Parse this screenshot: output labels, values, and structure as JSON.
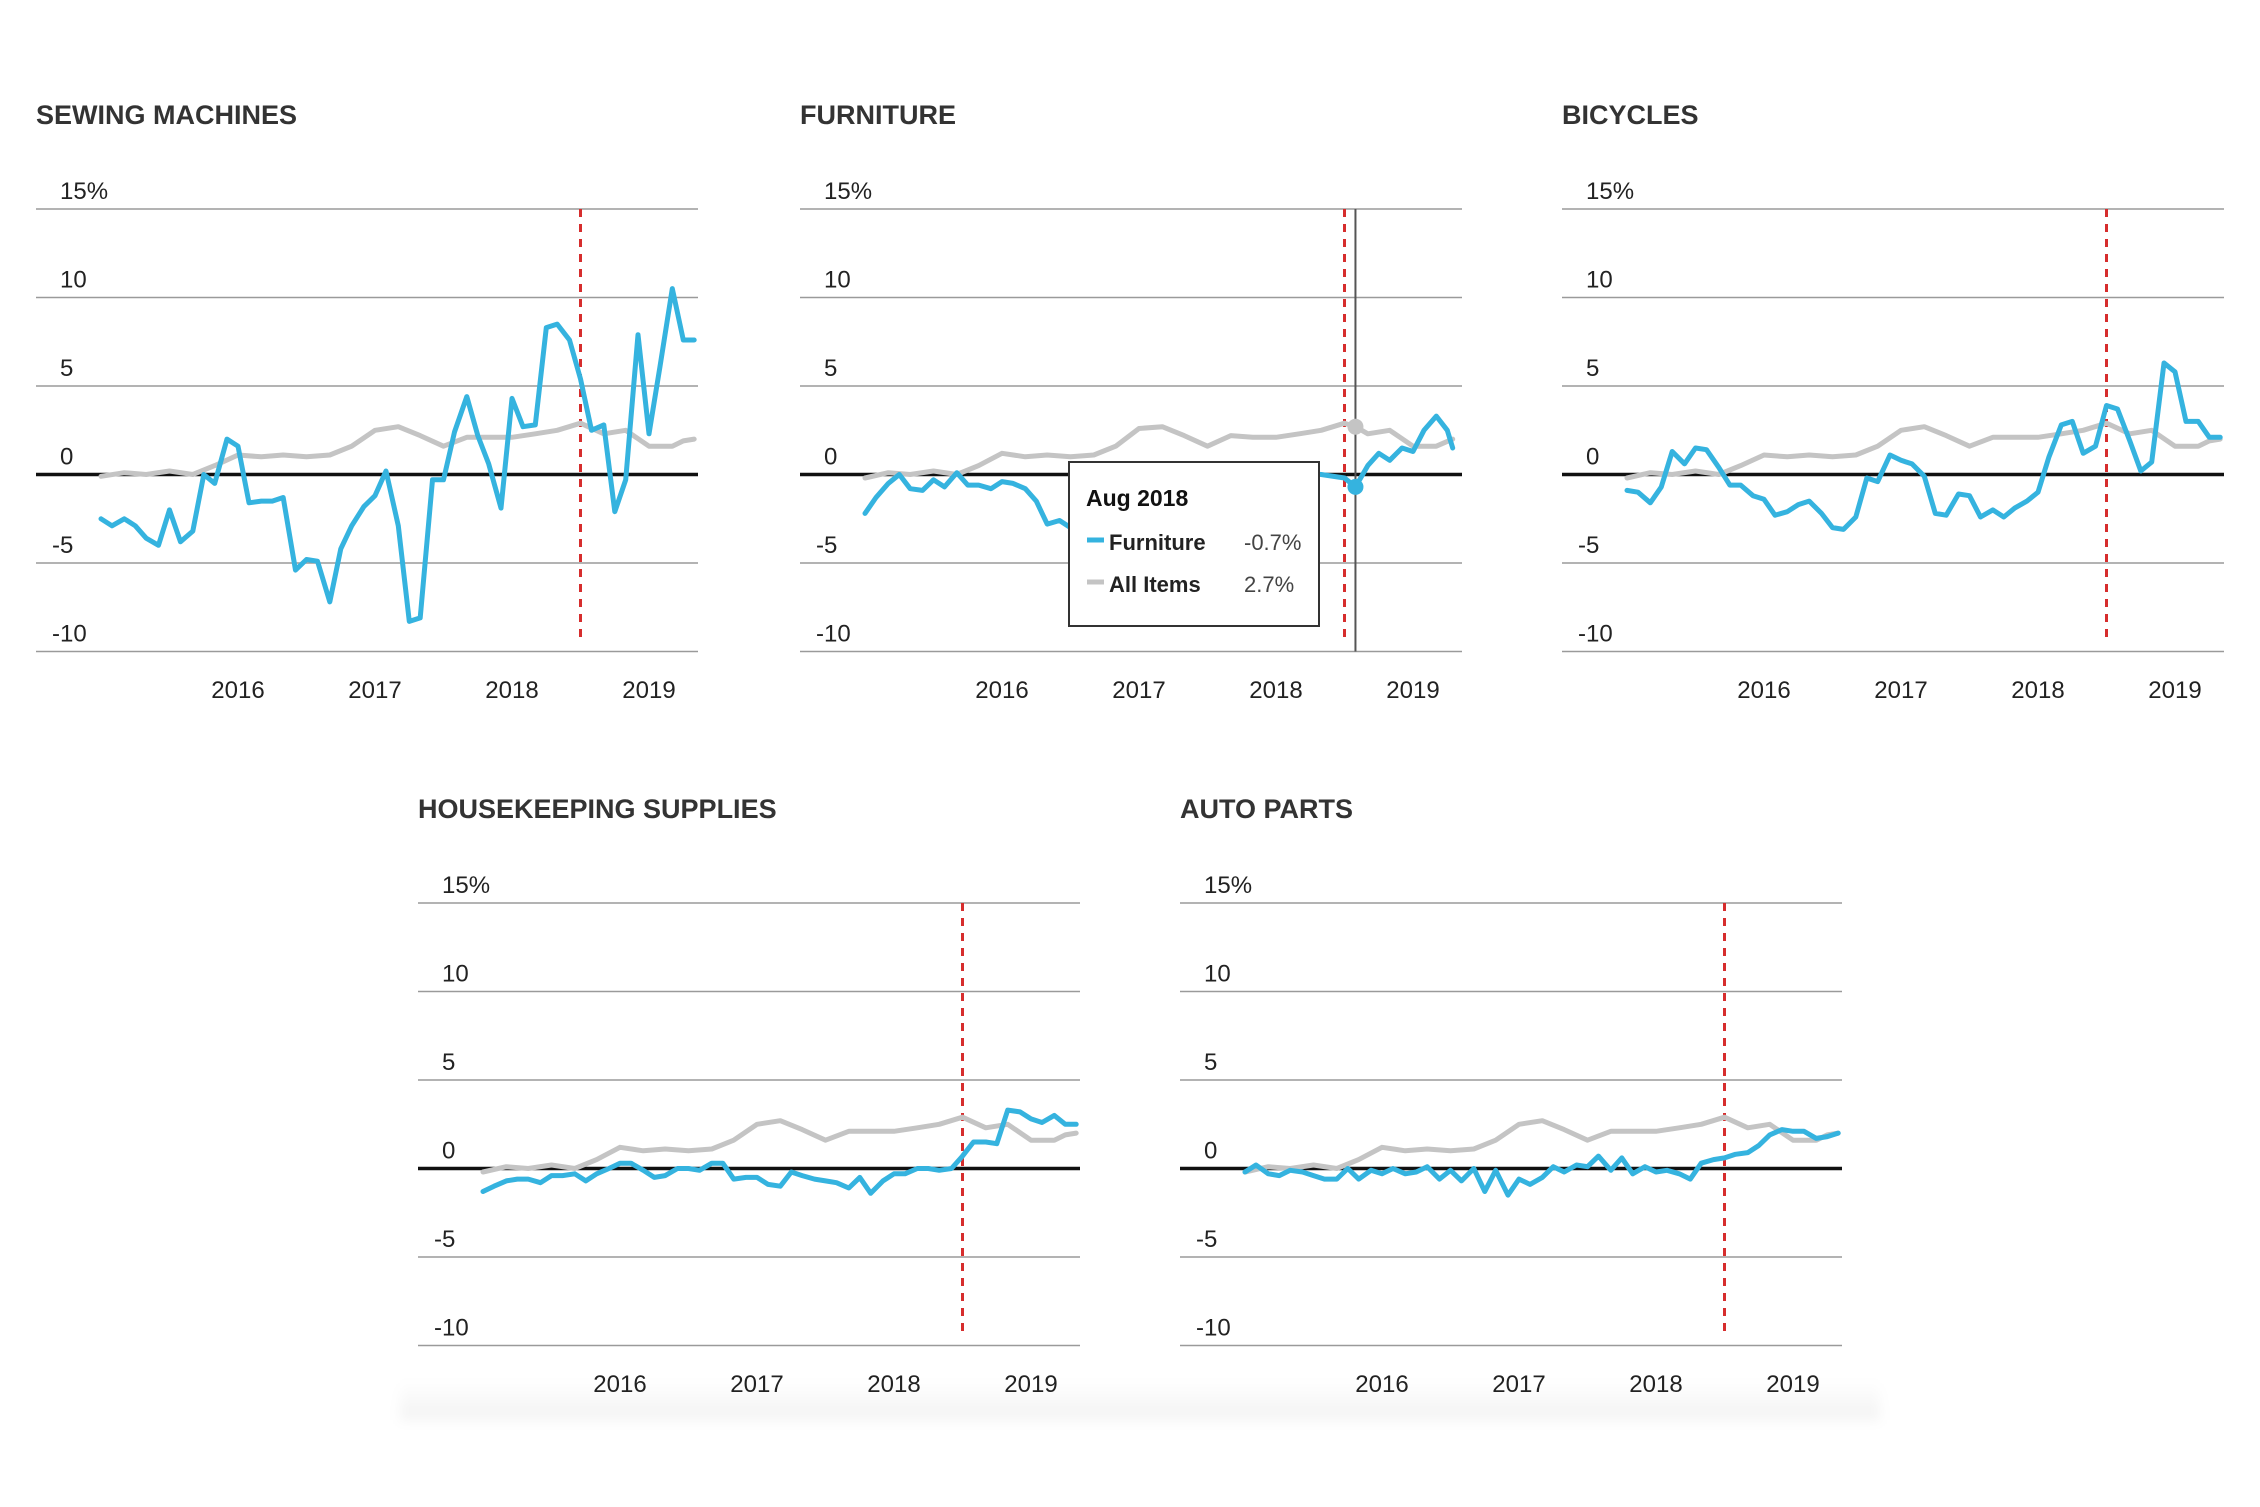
{
  "colors": {
    "category": "#35b3df",
    "all_items": "#c4c4c4",
    "tariff_line": "#d62d2d",
    "zero_line": "#111111",
    "grid": "#9a9a9a"
  },
  "chart_data": [
    {
      "type": "line",
      "title": "SEWING MACHINES",
      "x_ticks": [
        "2016",
        "2017",
        "2018",
        "2019"
      ],
      "y_ticks": [
        "15%",
        "10",
        "5",
        "0",
        "-5",
        "-10"
      ],
      "ylim": [
        -10,
        15
      ],
      "xlim": [
        2014.8,
        2019.5
      ],
      "marker_x": 2018.5,
      "series": [
        {
          "color": "#35b3df",
          "x": [
            2015.0,
            2015.08,
            2015.17,
            2015.25,
            2015.33,
            2015.42,
            2015.5,
            2015.58,
            2015.67,
            2015.75,
            2015.83,
            2015.92,
            2016.0,
            2016.08,
            2016.17,
            2016.25,
            2016.33,
            2016.42,
            2016.5,
            2016.58,
            2016.67,
            2016.75,
            2016.83,
            2016.92,
            2017.0,
            2017.08,
            2017.17,
            2017.25,
            2017.33,
            2017.42,
            2017.5,
            2017.58,
            2017.67,
            2017.75,
            2017.83,
            2017.92,
            2018.0,
            2018.08,
            2018.17,
            2018.25,
            2018.33,
            2018.42,
            2018.5,
            2018.58,
            2018.67,
            2018.75,
            2018.83,
            2018.92,
            2019.0,
            2019.08,
            2019.17,
            2019.25,
            2019.33
          ],
          "y": [
            -2.5,
            -2.9,
            -2.5,
            -2.9,
            -3.6,
            -4.0,
            -2.0,
            -3.8,
            -3.2,
            0.0,
            -0.5,
            2.0,
            1.6,
            -1.6,
            -1.5,
            -1.5,
            -1.3,
            -5.4,
            -4.8,
            -4.9,
            -7.2,
            -4.2,
            -2.9,
            -1.8,
            -1.2,
            0.2,
            -2.9,
            -8.3,
            -8.1,
            -0.3,
            -0.3,
            2.4,
            4.4,
            2.2,
            0.6,
            -1.9,
            4.3,
            2.7,
            2.8,
            8.3,
            8.5,
            7.6,
            5.4,
            2.5,
            2.8,
            -2.1,
            -0.3,
            7.9,
            2.3,
            6.1,
            10.5,
            7.6,
            7.6
          ]
        },
        {
          "color": "#c4c4c4",
          "x": [
            2015.0,
            2015.17,
            2015.33,
            2015.5,
            2015.67,
            2015.83,
            2016.0,
            2016.17,
            2016.33,
            2016.5,
            2016.67,
            2016.83,
            2017.0,
            2017.17,
            2017.33,
            2017.5,
            2017.67,
            2017.83,
            2018.0,
            2018.17,
            2018.33,
            2018.5,
            2018.67,
            2018.83,
            2019.0,
            2019.17,
            2019.25,
            2019.33
          ],
          "y": [
            -0.1,
            0.1,
            0.0,
            0.2,
            0.0,
            0.5,
            1.1,
            1.0,
            1.1,
            1.0,
            1.1,
            1.6,
            2.5,
            2.7,
            2.2,
            1.6,
            2.1,
            2.1,
            2.1,
            2.3,
            2.5,
            2.9,
            2.3,
            2.5,
            1.6,
            1.6,
            1.9,
            2.0
          ]
        }
      ]
    },
    {
      "type": "line",
      "title": "FURNITURE",
      "x_ticks": [
        "2016",
        "2017",
        "2018",
        "2019"
      ],
      "y_ticks": [
        "15%",
        "10",
        "5",
        "0",
        "-5",
        "-10"
      ],
      "ylim": [
        -10,
        15
      ],
      "xlim": [
        2014.8,
        2019.5
      ],
      "marker_x": 2018.5,
      "tooltip": {
        "title": "Aug 2018",
        "x": 2018.58,
        "rows": [
          {
            "label": "Furniture",
            "value": "-0.7%",
            "color": "#35b3df",
            "y": -0.7
          },
          {
            "label": "All Items",
            "value": "2.7%",
            "color": "#c4c4c4",
            "y": 2.7
          }
        ]
      },
      "series": [
        {
          "color": "#35b3df",
          "x": [
            2015.0,
            2015.08,
            2015.17,
            2015.25,
            2015.33,
            2015.42,
            2015.5,
            2015.58,
            2015.67,
            2015.75,
            2015.83,
            2015.92,
            2016.0,
            2016.08,
            2016.17,
            2016.25,
            2016.33,
            2016.42,
            2016.5,
            2016.58,
            2016.67,
            2016.75,
            2016.83,
            2016.92,
            2017.0,
            2017.17,
            2017.33,
            2017.5,
            2017.67,
            2017.83,
            2018.0,
            2018.17,
            2018.33,
            2018.5,
            2018.58,
            2018.67,
            2018.75,
            2018.83,
            2018.92,
            2019.0,
            2019.08,
            2019.17,
            2019.25,
            2019.29
          ],
          "y": [
            -2.2,
            -1.3,
            -0.5,
            0.0,
            -0.8,
            -0.9,
            -0.3,
            -0.7,
            0.1,
            -0.6,
            -0.6,
            -0.8,
            -0.4,
            -0.5,
            -0.8,
            -1.5,
            -2.8,
            -2.6,
            -3.0,
            -2.0,
            -1.5,
            -1.3,
            -1.0,
            -0.8,
            -0.5,
            -0.3,
            -0.2,
            0.0,
            0.4,
            0.2,
            0.3,
            0.1,
            0.0,
            -0.2,
            -0.7,
            0.5,
            1.2,
            0.8,
            1.5,
            1.3,
            2.5,
            3.3,
            2.5,
            1.5
          ]
        },
        {
          "color": "#c4c4c4",
          "x": [
            2015.0,
            2015.17,
            2015.33,
            2015.5,
            2015.67,
            2015.83,
            2016.0,
            2016.17,
            2016.33,
            2016.5,
            2016.67,
            2016.83,
            2017.0,
            2017.17,
            2017.33,
            2017.5,
            2017.67,
            2017.83,
            2018.0,
            2018.17,
            2018.33,
            2018.5,
            2018.58,
            2018.67,
            2018.83,
            2019.0,
            2019.17,
            2019.29
          ],
          "y": [
            -0.2,
            0.1,
            0.0,
            0.2,
            0.0,
            0.5,
            1.2,
            1.0,
            1.1,
            1.0,
            1.1,
            1.6,
            2.6,
            2.7,
            2.2,
            1.6,
            2.2,
            2.1,
            2.1,
            2.3,
            2.5,
            2.9,
            2.7,
            2.3,
            2.5,
            1.6,
            1.6,
            2.0
          ]
        }
      ]
    },
    {
      "type": "line",
      "title": "BICYCLES",
      "x_ticks": [
        "2016",
        "2017",
        "2018",
        "2019"
      ],
      "y_ticks": [
        "15%",
        "10",
        "5",
        "0",
        "-5",
        "-10"
      ],
      "ylim": [
        -10,
        15
      ],
      "xlim": [
        2014.8,
        2019.5
      ],
      "marker_x": 2018.5,
      "series": [
        {
          "color": "#35b3df",
          "x": [
            2015.0,
            2015.08,
            2015.17,
            2015.25,
            2015.33,
            2015.42,
            2015.5,
            2015.58,
            2015.67,
            2015.75,
            2015.83,
            2015.92,
            2016.0,
            2016.08,
            2016.17,
            2016.25,
            2016.33,
            2016.42,
            2016.5,
            2016.58,
            2016.67,
            2016.75,
            2016.83,
            2016.92,
            2017.0,
            2017.08,
            2017.17,
            2017.25,
            2017.33,
            2017.42,
            2017.5,
            2017.58,
            2017.67,
            2017.75,
            2017.83,
            2017.92,
            2018.0,
            2018.08,
            2018.17,
            2018.25,
            2018.33,
            2018.42,
            2018.5,
            2018.58,
            2018.67,
            2018.75,
            2018.83,
            2018.92,
            2019.0,
            2019.08,
            2019.17,
            2019.25,
            2019.33
          ],
          "y": [
            -0.9,
            -1.0,
            -1.6,
            -0.7,
            1.3,
            0.6,
            1.5,
            1.4,
            0.4,
            -0.6,
            -0.6,
            -1.2,
            -1.4,
            -2.3,
            -2.1,
            -1.7,
            -1.5,
            -2.2,
            -3.0,
            -3.1,
            -2.4,
            -0.2,
            -0.4,
            1.1,
            0.8,
            0.6,
            -0.1,
            -2.2,
            -2.3,
            -1.1,
            -1.2,
            -2.4,
            -2.0,
            -2.4,
            -1.9,
            -1.5,
            -1.0,
            1.0,
            2.8,
            3.0,
            1.2,
            1.6,
            3.9,
            3.7,
            1.9,
            0.2,
            0.7,
            6.3,
            5.8,
            3.0,
            3.0,
            2.1,
            2.1
          ]
        },
        {
          "color": "#c4c4c4",
          "x": [
            2015.0,
            2015.17,
            2015.33,
            2015.5,
            2015.67,
            2015.83,
            2016.0,
            2016.17,
            2016.33,
            2016.5,
            2016.67,
            2016.83,
            2017.0,
            2017.17,
            2017.33,
            2017.5,
            2017.67,
            2017.83,
            2018.0,
            2018.17,
            2018.33,
            2018.5,
            2018.67,
            2018.83,
            2019.0,
            2019.17,
            2019.25,
            2019.33
          ],
          "y": [
            -0.2,
            0.1,
            0.0,
            0.2,
            0.0,
            0.5,
            1.1,
            1.0,
            1.1,
            1.0,
            1.1,
            1.6,
            2.5,
            2.7,
            2.2,
            1.6,
            2.1,
            2.1,
            2.1,
            2.3,
            2.5,
            2.9,
            2.3,
            2.5,
            1.6,
            1.6,
            1.9,
            2.0
          ]
        }
      ]
    },
    {
      "type": "line",
      "title": "HOUSEKEEPING SUPPLIES",
      "x_ticks": [
        "2016",
        "2017",
        "2018",
        "2019"
      ],
      "y_ticks": [
        "15%",
        "10",
        "5",
        "0",
        "-5",
        "-10"
      ],
      "ylim": [
        -10,
        15
      ],
      "xlim": [
        2014.8,
        2019.5
      ],
      "marker_x": 2018.5,
      "series": [
        {
          "color": "#35b3df",
          "x": [
            2015.0,
            2015.08,
            2015.17,
            2015.25,
            2015.33,
            2015.42,
            2015.5,
            2015.58,
            2015.67,
            2015.75,
            2015.83,
            2015.92,
            2016.0,
            2016.08,
            2016.17,
            2016.25,
            2016.33,
            2016.42,
            2016.5,
            2016.58,
            2016.67,
            2016.75,
            2016.83,
            2016.92,
            2017.0,
            2017.08,
            2017.17,
            2017.25,
            2017.33,
            2017.42,
            2017.5,
            2017.58,
            2017.67,
            2017.75,
            2017.83,
            2017.92,
            2018.0,
            2018.08,
            2018.17,
            2018.25,
            2018.33,
            2018.42,
            2018.5,
            2018.58,
            2018.67,
            2018.75,
            2018.83,
            2018.92,
            2019.0,
            2019.08,
            2019.17,
            2019.25,
            2019.33
          ],
          "y": [
            -1.3,
            -1.0,
            -0.7,
            -0.6,
            -0.6,
            -0.8,
            -0.4,
            -0.4,
            -0.3,
            -0.7,
            -0.3,
            0.0,
            0.3,
            0.3,
            -0.1,
            -0.5,
            -0.4,
            0.0,
            0.0,
            -0.1,
            0.3,
            0.3,
            -0.6,
            -0.5,
            -0.5,
            -0.9,
            -1.0,
            -0.2,
            -0.4,
            -0.6,
            -0.7,
            -0.8,
            -1.1,
            -0.5,
            -1.4,
            -0.7,
            -0.3,
            -0.3,
            0.0,
            0.0,
            -0.1,
            0.0,
            0.7,
            1.5,
            1.5,
            1.4,
            3.3,
            3.2,
            2.8,
            2.6,
            3.0,
            2.5,
            2.5
          ]
        },
        {
          "color": "#c4c4c4",
          "x": [
            2015.0,
            2015.17,
            2015.33,
            2015.5,
            2015.67,
            2015.83,
            2016.0,
            2016.17,
            2016.33,
            2016.5,
            2016.67,
            2016.83,
            2017.0,
            2017.17,
            2017.33,
            2017.5,
            2017.67,
            2017.83,
            2018.0,
            2018.17,
            2018.33,
            2018.5,
            2018.67,
            2018.83,
            2019.0,
            2019.17,
            2019.25,
            2019.33
          ],
          "y": [
            -0.2,
            0.1,
            0.0,
            0.2,
            0.0,
            0.5,
            1.2,
            1.0,
            1.1,
            1.0,
            1.1,
            1.6,
            2.5,
            2.7,
            2.2,
            1.6,
            2.1,
            2.1,
            2.1,
            2.3,
            2.5,
            2.9,
            2.3,
            2.5,
            1.6,
            1.6,
            1.9,
            2.0
          ]
        }
      ]
    },
    {
      "type": "line",
      "title": "AUTO PARTS",
      "x_ticks": [
        "2016",
        "2017",
        "2018",
        "2019"
      ],
      "y_ticks": [
        "15%",
        "10",
        "5",
        "0",
        "-5",
        "-10"
      ],
      "ylim": [
        -10,
        15
      ],
      "xlim": [
        2014.8,
        2019.5
      ],
      "marker_x": 2018.5,
      "series": [
        {
          "color": "#35b3df",
          "x": [
            2015.0,
            2015.08,
            2015.17,
            2015.25,
            2015.33,
            2015.42,
            2015.5,
            2015.58,
            2015.67,
            2015.75,
            2015.83,
            2015.92,
            2016.0,
            2016.08,
            2016.17,
            2016.25,
            2016.33,
            2016.42,
            2016.5,
            2016.58,
            2016.67,
            2016.75,
            2016.83,
            2016.92,
            2017.0,
            2017.08,
            2017.17,
            2017.25,
            2017.33,
            2017.42,
            2017.5,
            2017.58,
            2017.67,
            2017.75,
            2017.83,
            2017.92,
            2018.0,
            2018.08,
            2018.17,
            2018.25,
            2018.33,
            2018.42,
            2018.5,
            2018.58,
            2018.67,
            2018.75,
            2018.83,
            2018.92,
            2019.0,
            2019.08,
            2019.17,
            2019.25,
            2019.33
          ],
          "y": [
            -0.2,
            0.2,
            -0.3,
            -0.4,
            -0.1,
            -0.2,
            -0.4,
            -0.6,
            -0.6,
            0.0,
            -0.6,
            -0.1,
            -0.3,
            0.0,
            -0.3,
            -0.2,
            0.1,
            -0.6,
            -0.1,
            -0.7,
            0.0,
            -1.3,
            -0.1,
            -1.5,
            -0.6,
            -0.9,
            -0.5,
            0.1,
            -0.2,
            0.2,
            0.1,
            0.7,
            -0.1,
            0.6,
            -0.3,
            0.1,
            -0.2,
            -0.1,
            -0.3,
            -0.6,
            0.3,
            0.5,
            0.6,
            0.8,
            0.9,
            1.3,
            1.9,
            2.2,
            2.1,
            2.1,
            1.7,
            1.8,
            2.0
          ]
        },
        {
          "color": "#c4c4c4",
          "x": [
            2015.0,
            2015.17,
            2015.33,
            2015.5,
            2015.67,
            2015.83,
            2016.0,
            2016.17,
            2016.33,
            2016.5,
            2016.67,
            2016.83,
            2017.0,
            2017.17,
            2017.33,
            2017.5,
            2017.67,
            2017.83,
            2018.0,
            2018.17,
            2018.33,
            2018.5,
            2018.67,
            2018.83,
            2019.0,
            2019.17,
            2019.25,
            2019.33
          ],
          "y": [
            -0.2,
            0.1,
            0.0,
            0.2,
            0.0,
            0.5,
            1.2,
            1.0,
            1.1,
            1.0,
            1.1,
            1.6,
            2.5,
            2.7,
            2.2,
            1.6,
            2.1,
            2.1,
            2.1,
            2.3,
            2.5,
            2.9,
            2.3,
            2.5,
            1.6,
            1.6,
            1.9,
            2.0
          ]
        }
      ]
    }
  ]
}
